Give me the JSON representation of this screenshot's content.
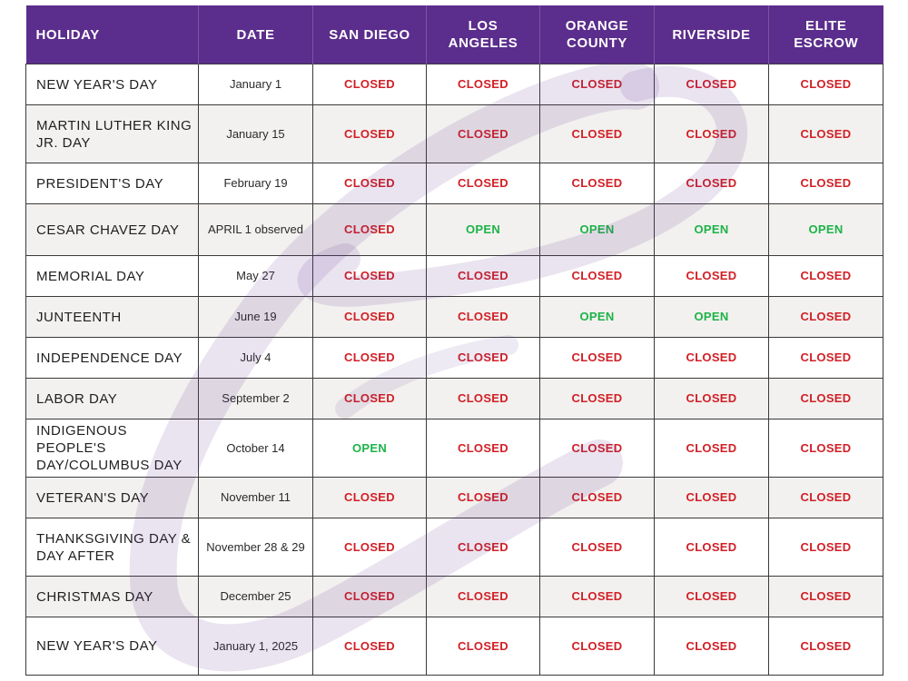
{
  "columns": [
    "HOLIDAY",
    "DATE",
    "SAN DIEGO",
    "LOS ANGELES",
    "ORANGE COUNTY",
    "RIVERSIDE",
    "ELITE ESCROW"
  ],
  "colors": {
    "header_bg": "#5b2d8c",
    "closed": "#d21f26",
    "open": "#1db348",
    "shade_row": "#f2f1ef"
  },
  "rows": [
    {
      "holiday": "NEW YEAR'S DAY",
      "date": "January 1",
      "statuses": [
        "CLOSED",
        "CLOSED",
        "CLOSED",
        "CLOSED",
        "CLOSED"
      ]
    },
    {
      "holiday": "MARTIN LUTHER KING JR. DAY",
      "date": "January 15",
      "statuses": [
        "CLOSED",
        "CLOSED",
        "CLOSED",
        "CLOSED",
        "CLOSED"
      ]
    },
    {
      "holiday": "PRESIDENT'S DAY",
      "date": "February 19",
      "statuses": [
        "CLOSED",
        "CLOSED",
        "CLOSED",
        "CLOSED",
        "CLOSED"
      ]
    },
    {
      "holiday": "CESAR CHAVEZ DAY",
      "date": "APRIL 1 observed",
      "statuses": [
        "CLOSED",
        "OPEN",
        "OPEN",
        "OPEN",
        "OPEN"
      ]
    },
    {
      "holiday": "MEMORIAL DAY",
      "date": "May 27",
      "statuses": [
        "CLOSED",
        "CLOSED",
        "CLOSED",
        "CLOSED",
        "CLOSED"
      ]
    },
    {
      "holiday": "JUNTEENTH",
      "date": "June 19",
      "statuses": [
        "CLOSED",
        "CLOSED",
        "OPEN",
        "OPEN",
        "CLOSED"
      ]
    },
    {
      "holiday": "INDEPENDENCE DAY",
      "date": "July 4",
      "statuses": [
        "CLOSED",
        "CLOSED",
        "CLOSED",
        "CLOSED",
        "CLOSED"
      ]
    },
    {
      "holiday": "LABOR DAY",
      "date": "September 2",
      "statuses": [
        "CLOSED",
        "CLOSED",
        "CLOSED",
        "CLOSED",
        "CLOSED"
      ]
    },
    {
      "holiday": "INDIGENOUS PEOPLE'S DAY/COLUMBUS DAY",
      "date": "October 14",
      "statuses": [
        "OPEN",
        "CLOSED",
        "CLOSED",
        "CLOSED",
        "CLOSED"
      ]
    },
    {
      "holiday": "VETERAN'S DAY",
      "date": "November 11",
      "statuses": [
        "CLOSED",
        "CLOSED",
        "CLOSED",
        "CLOSED",
        "CLOSED"
      ]
    },
    {
      "holiday": "THANKSGIVING DAY & DAY AFTER",
      "date": "November 28 & 29",
      "statuses": [
        "CLOSED",
        "CLOSED",
        "CLOSED",
        "CLOSED",
        "CLOSED"
      ]
    },
    {
      "holiday": "CHRISTMAS DAY",
      "date": "December 25",
      "statuses": [
        "CLOSED",
        "CLOSED",
        "CLOSED",
        "CLOSED",
        "CLOSED"
      ]
    },
    {
      "holiday": "NEW YEAR'S DAY",
      "date": "January 1, 2025",
      "statuses": [
        "CLOSED",
        "CLOSED",
        "CLOSED",
        "CLOSED",
        "CLOSED"
      ]
    }
  ]
}
